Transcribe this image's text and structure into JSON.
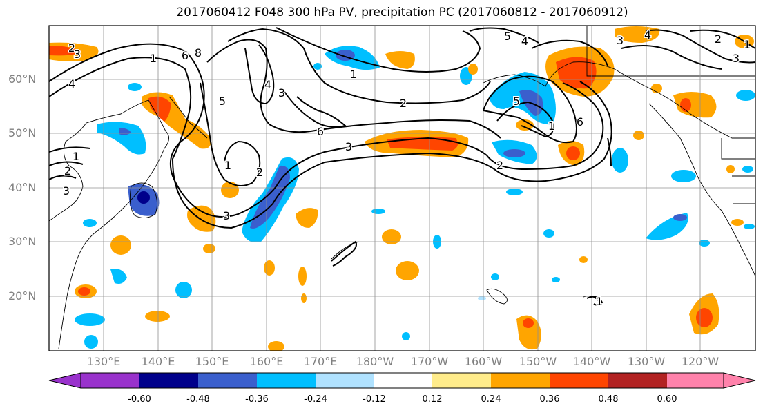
{
  "title": "2017060412 F048 300 hPa PV, precipitation PC (2017060812 - 2017060912)",
  "latitudes": [
    "60°N",
    "50°N",
    "40°N",
    "30°N",
    "20°N"
  ],
  "longitudes": [
    "130°E",
    "140°E",
    "150°E",
    "160°E",
    "170°E",
    "180°W",
    "170°W",
    "160°W",
    "150°W",
    "140°W",
    "130°W",
    "120°W"
  ],
  "contour_labels": [
    "2",
    "3",
    "4",
    "1",
    "6",
    "8",
    "1",
    "2",
    "3",
    "1",
    "2",
    "6",
    "3",
    "2",
    "5",
    "4",
    "1",
    "3",
    "5",
    "4",
    "3",
    "5",
    "4",
    "3",
    "6",
    "1",
    "2",
    "3",
    "2",
    "1",
    "1"
  ],
  "colorbar": {
    "ticks": [
      "-0.60",
      "-0.48",
      "-0.36",
      "-0.24",
      "-0.12",
      "0.12",
      "0.24",
      "0.36",
      "0.48",
      "0.60"
    ],
    "colors": [
      "#9932cc",
      "#00008b",
      "#3a5fcd",
      "#00bfff",
      "#b0e2ff",
      "#ffffff",
      "#ffec8b",
      "#ffa500",
      "#ff4500",
      "#b22222",
      "#ff82ab"
    ]
  }
}
